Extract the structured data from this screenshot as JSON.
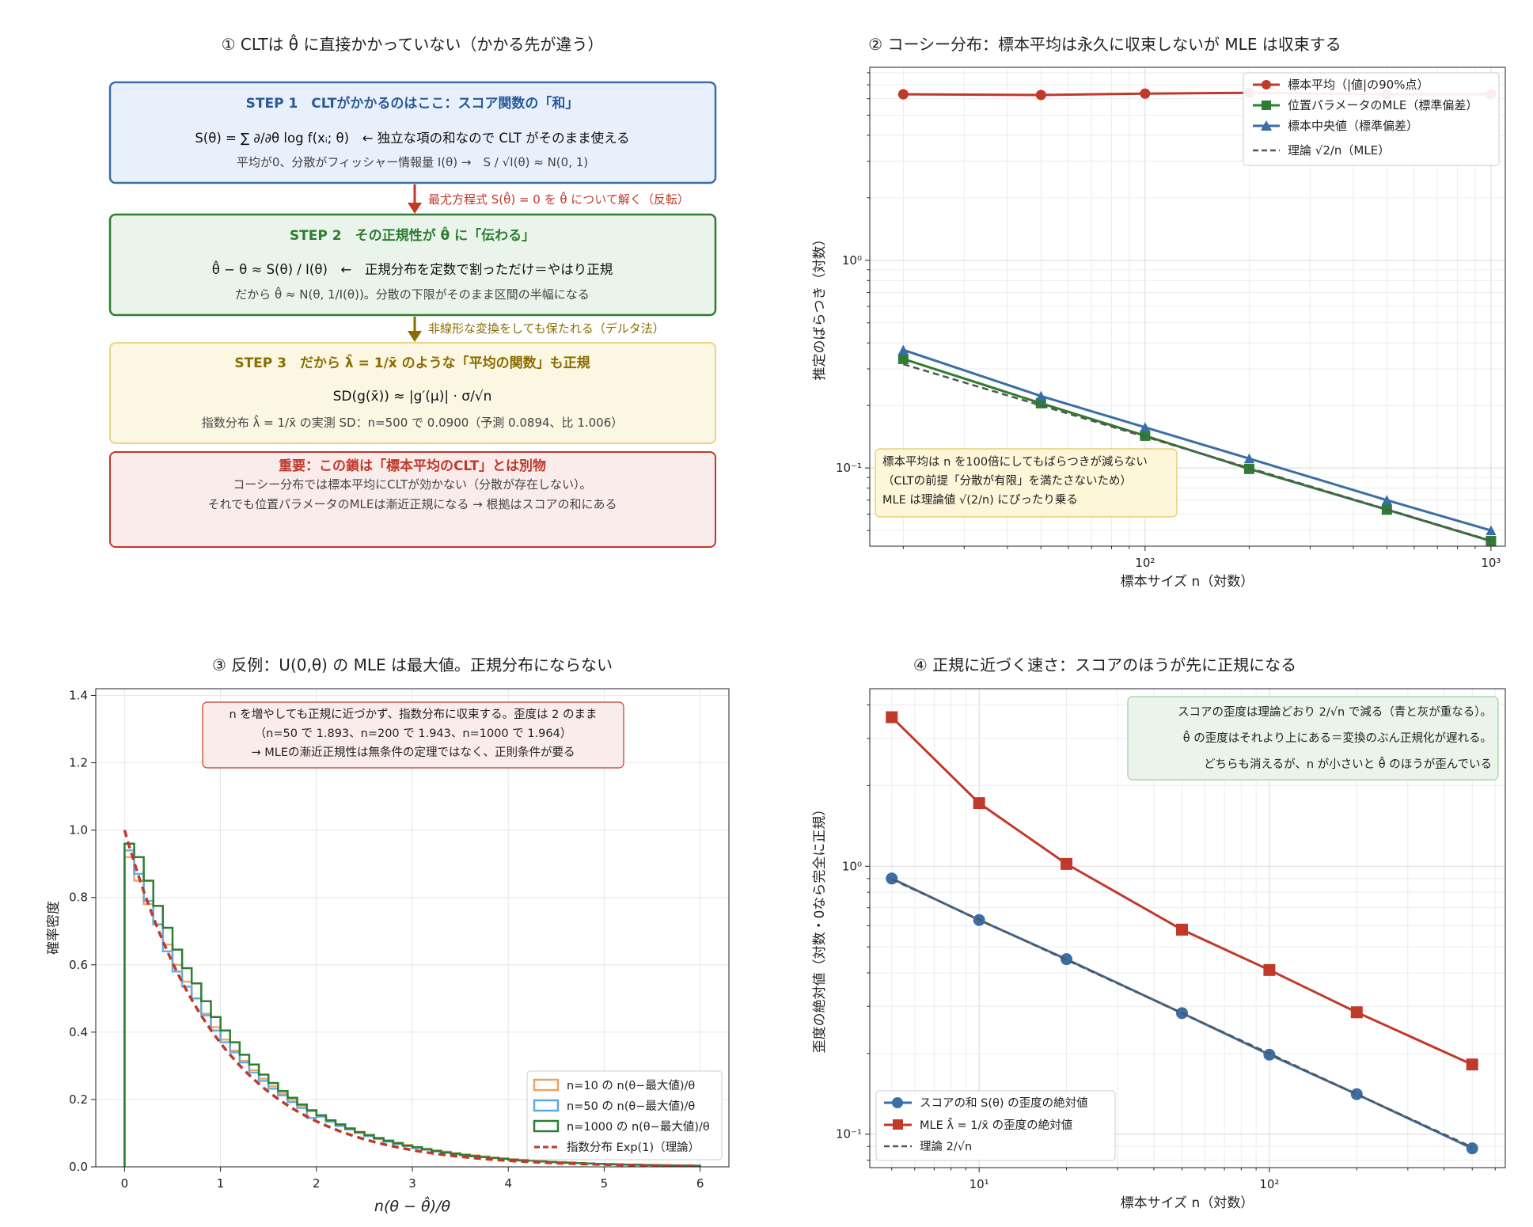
{
  "colors": {
    "red": "#c0392b",
    "green": "#2e7d32",
    "blue": "#3a6ea5",
    "gray": "#555555",
    "orange": "#f0a060",
    "skyblue": "#5aa9e0",
    "darkgreen": "#2e7d32",
    "step1_fill": "#e8f0fb",
    "step1_edge": "#3a6ea5",
    "step1_title": "#2a5a98",
    "step2_fill": "#eaf4ea",
    "step2_edge": "#2e7d32",
    "step2_title": "#2e7d32",
    "step3_fill": "#fbf7e3",
    "step3_edge": "#e8d48a",
    "step3_title": "#8a6d00",
    "warn_fill": "#fbecec",
    "warn_edge": "#c0392b",
    "warn_title": "#c0392b",
    "arrow1": "#c0392b",
    "arrow2": "#8a6d00"
  },
  "panel1": {
    "title": "① CLTは θ̂ に直接かかっていない（かかる先が違う）",
    "step1": {
      "title": "STEP 1　CLTがかかるのはここ：スコア関数の「和」",
      "formula": "S(θ) = ∑ ∂/∂θ log f(xᵢ; θ)　← 独立な項の和なので CLT がそのまま使える",
      "note": "平均が0、分散がフィッシャー情報量 I(θ) →　S / √I(θ) ≈ N(0, 1)"
    },
    "arrow1_label": "最尤方程式 S(θ̂) = 0 を θ̂ について解く（反転）",
    "step2": {
      "title": "STEP 2　その正規性が θ̂ に「伝わる」",
      "formula": "θ̂ − θ ≈ S(θ) / I(θ)　←　正規分布を定数で割っただけ＝やはり正規",
      "note": "だから θ̂ ≈ N(θ, 1/I(θ))。分散の下限がそのまま区間の半幅になる"
    },
    "arrow2_label": "非線形な変換をしても保たれる（デルタ法）",
    "step3": {
      "title": "STEP 3　だから λ̂ = 1/x̄ のような「平均の関数」も正規",
      "formula": "SD(g(x̄)) ≈ |g′(μ)| · σ/√n",
      "note": "指数分布 λ̂ = 1/x̄ の実測 SD：n=500 で 0.0900（予測 0.0894、比 1.006）"
    },
    "warning": {
      "title": "重要：この鎖は「標本平均のCLT」とは別物",
      "line1": "コーシー分布では標本平均にCLTが効かない（分散が存在しない）。",
      "line2": "それでも位置パラメータのMLEは漸近正規になる → 根拠はスコアの和にある"
    }
  },
  "chart_data": [
    {
      "id": "cauchy",
      "type": "line",
      "title": "② コーシー分布：標本平均は永久に収束しないが MLE は収束する",
      "xlabel": "標本サイズ n（対数）",
      "ylabel": "推定のばらつき（対数）",
      "xscale": "log",
      "yscale": "log",
      "xlim": [
        16,
        1100
      ],
      "ylim": [
        0.042,
        8.5
      ],
      "xticks": [
        {
          "v": 100,
          "label": "10²"
        },
        {
          "v": 1000,
          "label": "10³"
        }
      ],
      "yticks": [
        {
          "v": 0.1,
          "label": "10⁻¹"
        },
        {
          "v": 1,
          "label": "10⁰"
        }
      ],
      "grid": true,
      "legend_position": "upper right",
      "series": [
        {
          "name": "標本平均（|値|の90%点）",
          "color": "#c0392b",
          "marker": "circle",
          "x": [
            20,
            50,
            100,
            200,
            500,
            1000
          ],
          "y": [
            6.3,
            6.25,
            6.35,
            6.4,
            6.3,
            6.3
          ]
        },
        {
          "name": "位置パラメータのMLE（標準偏差）",
          "color": "#2e7d32",
          "marker": "square",
          "x": [
            20,
            50,
            100,
            200,
            500,
            1000
          ],
          "y": [
            0.335,
            0.205,
            0.143,
            0.099,
            0.063,
            0.0445
          ]
        },
        {
          "name": "標本中央値（標準偏差）",
          "color": "#3a6ea5",
          "marker": "triangle",
          "x": [
            20,
            50,
            100,
            200,
            500,
            1000
          ],
          "y": [
            0.37,
            0.222,
            0.157,
            0.111,
            0.07,
            0.05
          ]
        },
        {
          "name": "理論 √2/n（MLE）",
          "color": "#555555",
          "dash": true,
          "marker": "none",
          "x": [
            20,
            50,
            100,
            200,
            500,
            1000
          ],
          "y": [
            0.316,
            0.2,
            0.1414,
            0.1,
            0.0632,
            0.0447
          ]
        }
      ],
      "annotation": {
        "line1": "標本平均は n を100倍にしてもばらつきが減らない",
        "line2": "（CLTの前提「分散が有限」を満たさないため）",
        "line3": "MLE は理論値 √(2/n) にぴったり乗る"
      }
    },
    {
      "id": "uniform",
      "type": "histogram",
      "title": "③ 反例：U(0,θ) の MLE は最大値。正規分布にならない",
      "xlabel": "n(θ − θ̂)/θ",
      "ylabel": "確率密度",
      "xlim": [
        -0.3,
        6.3
      ],
      "ylim": [
        0,
        1.42
      ],
      "xticks": [
        0,
        1,
        2,
        3,
        4,
        5,
        6
      ],
      "yticks": [
        0,
        0.2,
        0.4,
        0.6,
        0.8,
        1.0,
        1.2,
        1.4
      ],
      "ytick_labels": [
        "0.0",
        "0.2",
        "0.4",
        "0.6",
        "0.8",
        "1.0",
        "1.2",
        "1.4"
      ],
      "grid": true,
      "legend_position": "lower right",
      "bin_width": 0.1,
      "series": [
        {
          "name": "n=10 の  n(θ−最大値)/θ",
          "color": "#f0a060",
          "values": [
            0.92,
            0.85,
            0.78,
            0.72,
            0.66,
            0.6,
            0.55,
            0.5,
            0.455,
            0.415,
            0.378,
            0.345,
            0.315,
            0.287,
            0.262,
            0.239,
            0.218,
            0.199,
            0.181,
            0.165,
            0.151,
            0.137,
            0.125,
            0.114,
            0.104,
            0.095,
            0.086,
            0.079,
            0.072,
            0.065,
            0.059,
            0.054,
            0.049,
            0.045,
            0.041,
            0.037,
            0.034,
            0.031,
            0.028,
            0.025,
            0.023,
            0.021,
            0.019,
            0.017,
            0.015,
            0.014,
            0.013,
            0.011,
            0.01,
            0.009,
            0.008,
            0.007,
            0.0065,
            0.006,
            0.005,
            0.0045,
            0.004,
            0.0035,
            0.003,
            0.0025
          ]
        },
        {
          "name": "n=50 の  n(θ−最大値)/θ",
          "color": "#5aa9e0",
          "values": [
            0.94,
            0.87,
            0.79,
            0.72,
            0.64,
            0.58,
            0.535,
            0.5,
            0.45,
            0.405,
            0.37,
            0.34,
            0.31,
            0.28,
            0.255,
            0.232,
            0.212,
            0.192,
            0.175,
            0.145,
            0.149,
            0.134,
            0.121,
            0.111,
            0.101,
            0.091,
            0.083,
            0.075,
            0.068,
            0.062,
            0.056,
            0.051,
            0.046,
            0.042,
            0.038,
            0.035,
            0.031,
            0.029,
            0.026,
            0.024,
            0.021,
            0.019,
            0.018,
            0.016,
            0.015,
            0.013,
            0.012,
            0.011,
            0.01,
            0.009,
            0.008,
            0.0075,
            0.0068,
            0.0062,
            0.0056,
            0.005,
            0.0045,
            0.004,
            0.0036,
            0.0033
          ]
        },
        {
          "name": "n=1000 の  n(θ−最大値)/θ",
          "color": "#2e7d32",
          "values": [
            0.96,
            0.92,
            0.85,
            0.775,
            0.71,
            0.645,
            0.59,
            0.545,
            0.492,
            0.445,
            0.405,
            0.37,
            0.333,
            0.304,
            0.274,
            0.249,
            0.225,
            0.205,
            0.185,
            0.168,
            0.153,
            0.138,
            0.126,
            0.114,
            0.103,
            0.094,
            0.085,
            0.077,
            0.07,
            0.063,
            0.058,
            0.052,
            0.047,
            0.043,
            0.039,
            0.035,
            0.032,
            0.029,
            0.026,
            0.024,
            0.021,
            0.019,
            0.018,
            0.016,
            0.014,
            0.013,
            0.012,
            0.011,
            0.01,
            0.009,
            0.008,
            0.0074,
            0.0067,
            0.006,
            0.0055,
            0.005,
            0.0045,
            0.0041,
            0.0037,
            0.0034
          ]
        },
        {
          "name": "指数分布 Exp(1)（理論）",
          "color": "#c0392b",
          "dash": true,
          "curve": "exp(-x)"
        }
      ],
      "annotation": {
        "line1": "n を増やしても正規に近づかず、指数分布に収束する。歪度は 2 のまま",
        "line2": "（n=50 で 1.893、n=200 で 1.943、n=1000 で 1.964）",
        "line3": "→ MLEの漸近正規性は無条件の定理ではなく、正則条件が要る"
      }
    },
    {
      "id": "skewness",
      "type": "line",
      "title": "④ 正規に近づく速さ：スコアのほうが先に正規になる",
      "xlabel": "標本サイズ n（対数）",
      "ylabel": "歪度の絶対値（対数・0なら完全に正規）",
      "xscale": "log",
      "yscale": "log",
      "xlim": [
        4.2,
        650
      ],
      "ylim": [
        0.075,
        4.6
      ],
      "xticks": [
        {
          "v": 10,
          "label": "10¹"
        },
        {
          "v": 100,
          "label": "10²"
        }
      ],
      "yticks": [
        {
          "v": 0.1,
          "label": "10⁻¹"
        },
        {
          "v": 1,
          "label": "10⁰"
        }
      ],
      "grid": true,
      "legend_position": "lower left",
      "series": [
        {
          "name": "スコアの和  S(θ) の歪度の絶対値",
          "color": "#3a6ea5",
          "marker": "circle",
          "x": [
            5,
            10,
            20,
            50,
            100,
            200,
            500
          ],
          "y": [
            0.9,
            0.63,
            0.45,
            0.283,
            0.198,
            0.141,
            0.0885
          ]
        },
        {
          "name": "MLE  λ̂ = 1/x̄  の歪度の絶対値",
          "color": "#c0392b",
          "marker": "square",
          "x": [
            5,
            10,
            20,
            50,
            100,
            200,
            500
          ],
          "y": [
            3.6,
            1.72,
            1.02,
            0.58,
            0.41,
            0.285,
            0.182
          ]
        },
        {
          "name": "理論 2/√n",
          "color": "#555555",
          "dash": true,
          "marker": "none",
          "x": [
            5,
            10,
            20,
            50,
            100,
            200,
            500
          ],
          "y": [
            0.894,
            0.632,
            0.447,
            0.283,
            0.2,
            0.141,
            0.0894
          ]
        }
      ],
      "annotation": {
        "line1": "スコアの歪度は理論どおり 2/√n で減る（青と灰が重なる）。",
        "line2": "θ̂ の歪度はそれより上にある＝変換のぶん正規化が遅れる。",
        "line3": "どちらも消えるが、n が小さいと θ̂ のほうが歪んでいる"
      }
    }
  ]
}
